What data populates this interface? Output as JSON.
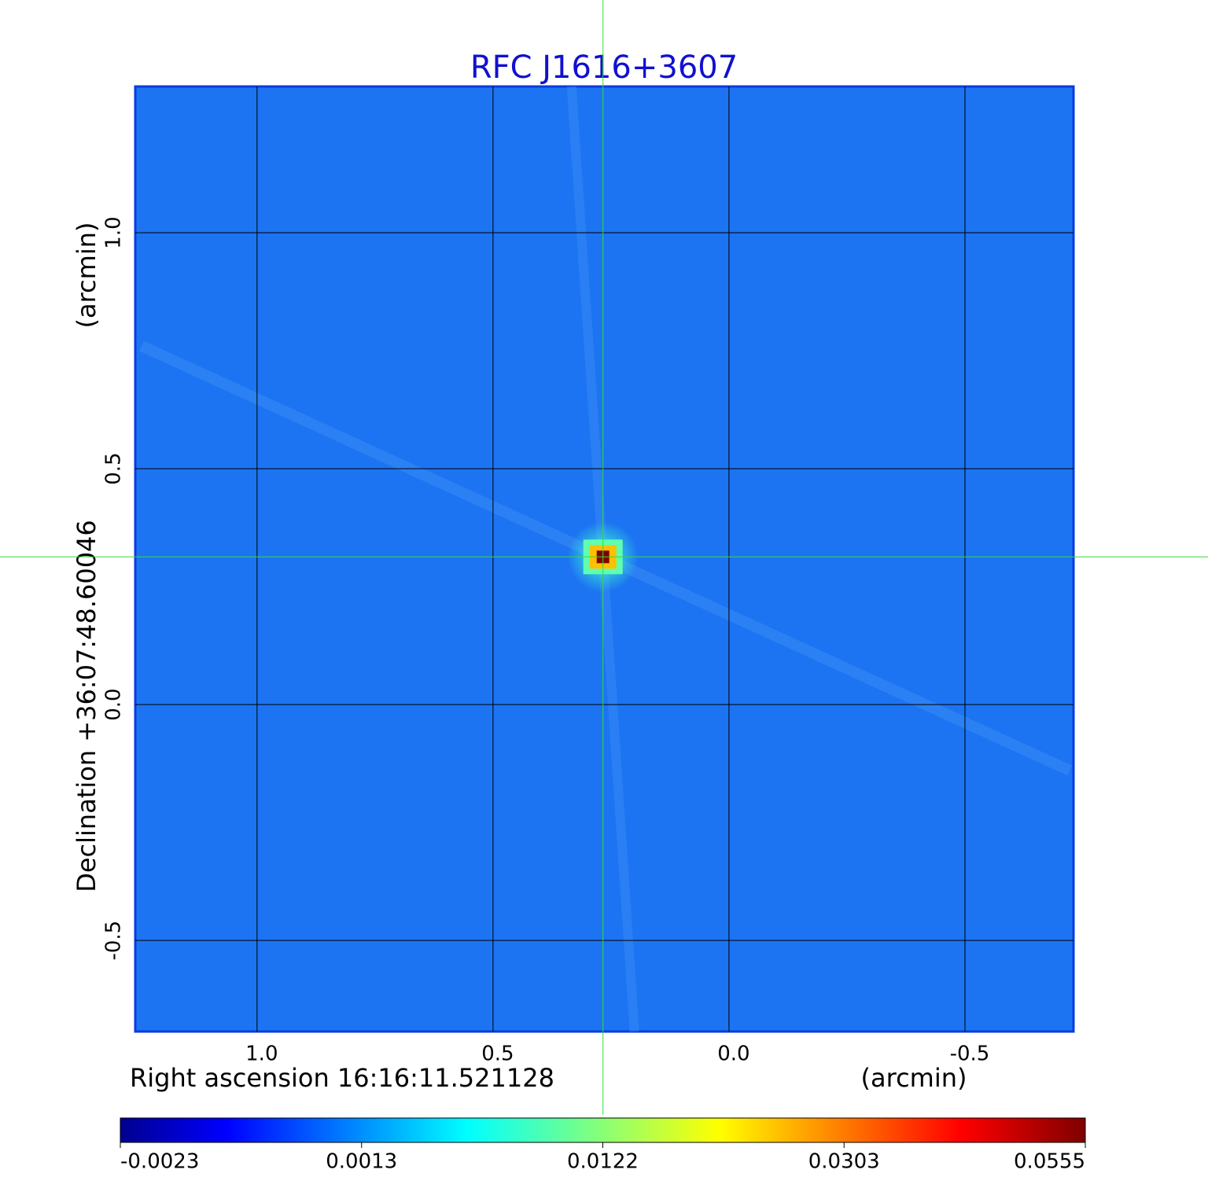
{
  "chart_data": {
    "type": "image",
    "title": "RFC J1616+3607",
    "xlabel": "Right ascension  16:16:11.521128",
    "xunit": "(arcmin)",
    "ylabel": "Declination  +36:07:48.60046",
    "yunit": "(arcmin)",
    "xlim": [
      1.258,
      -0.73
    ],
    "ylim": [
      -0.693,
      1.31
    ],
    "xticks": [
      {
        "value": 1,
        "label": "1.0"
      },
      0.5,
      {
        "value": 0,
        "label": "0.0"
      },
      -0.5
    ],
    "yticks": [
      -0.5,
      {
        "value": 0,
        "label": "0.0"
      },
      0.5,
      {
        "value": 1,
        "label": "1.0"
      }
    ],
    "grid": true,
    "background_color": "#1c74f2",
    "source": {
      "x": 0.267,
      "y": 0.313,
      "peak": 0.0555
    },
    "crosshair_color": "#33dd33",
    "colormap": [
      "#00008f",
      "#0000ff",
      "#00ffff",
      "#ffff00",
      "#ff0000",
      "#800000"
    ],
    "colorbar_ticks": [
      -0.0023,
      0.0013,
      0.0122,
      0.0303,
      0.0555
    ]
  }
}
